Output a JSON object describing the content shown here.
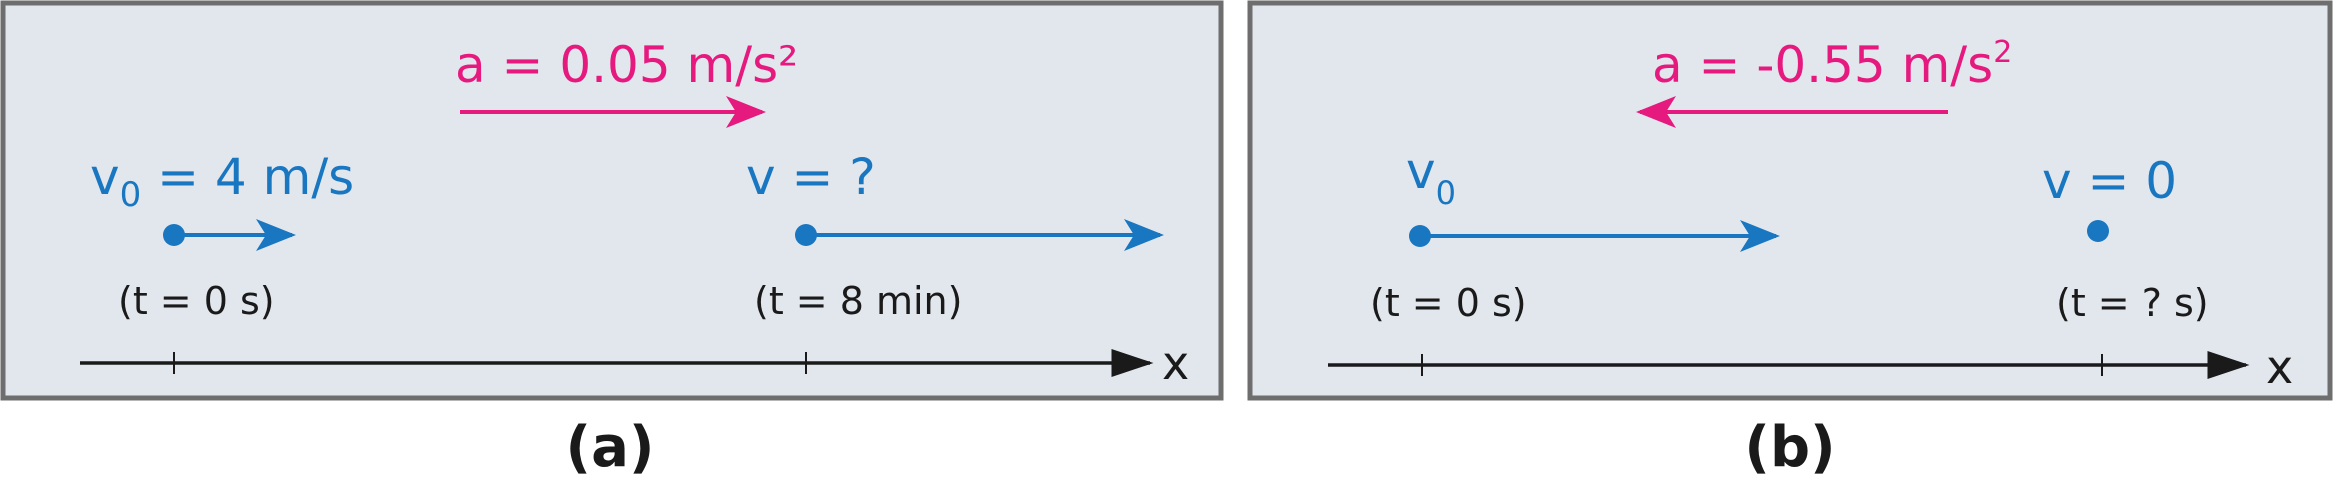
{
  "panel_a": {
    "acceleration_label": "a = 0.05 m/s²",
    "v0_label_main": "v",
    "v0_label_sub": "0",
    "v0_label_rest": " = 4 m/s",
    "final_velocity_label": "v = ?",
    "start_time": "(t = 0 s)",
    "end_time": "(t = 8 min)",
    "axis_label": "x",
    "caption": "(a)"
  },
  "panel_b": {
    "acceleration_label_main": "a = -0.55 m/s",
    "acceleration_label_sup": "2",
    "v0_label_main": "v",
    "v0_label_sub": "0",
    "final_velocity_label": "v = 0",
    "start_time": "(t = 0 s)",
    "end_time": "(t = ? s)",
    "axis_label": "x",
    "caption": "(b)"
  },
  "colors": {
    "panel_background": "#e2e7ee",
    "panel_border": "#6e6e6e",
    "velocity_blue": "#1976c0",
    "acceleration_pink": "#e6197f",
    "axis_black": "#1a1a1a"
  }
}
